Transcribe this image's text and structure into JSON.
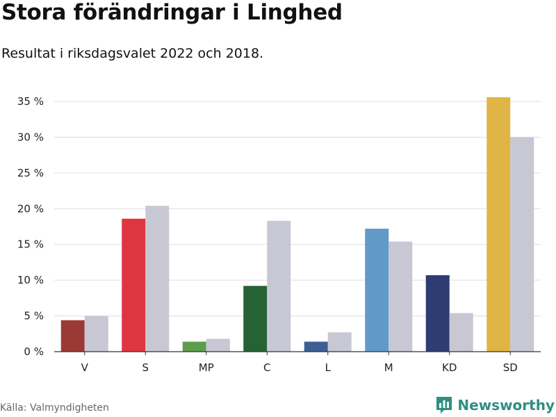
{
  "header": {
    "title": "Stora förändringar i Linghed",
    "subtitle": "Resultat i riksdagsvalet 2022 och 2018."
  },
  "footer": {
    "source": "Källa: Valmyndigheten",
    "brand": "Newsworthy"
  },
  "colors": {
    "previous_year": "#c8c8d4",
    "grid": "#dddddd",
    "axis": "#333333",
    "brand": "#2f8f80"
  },
  "chart_data": {
    "type": "bar",
    "categories": [
      "V",
      "S",
      "MP",
      "C",
      "L",
      "M",
      "KD",
      "SD"
    ],
    "series": [
      {
        "values": [
          4.4,
          18.6,
          1.4,
          9.2,
          1.4,
          17.2,
          10.7,
          35.6
        ],
        "colors": [
          "#9b3a35",
          "#dd3640",
          "#5d9e4c",
          "#276134",
          "#3d5f93",
          "#6199c8",
          "#2f3c73",
          "#dfb546"
        ]
      },
      {
        "values": [
          5.0,
          20.4,
          1.8,
          18.3,
          2.7,
          15.4,
          5.4,
          30.0
        ],
        "colors": [
          "#c8c8d4",
          "#c8c8d4",
          "#c8c8d4",
          "#c8c8d4",
          "#c8c8d4",
          "#c8c8d4",
          "#c8c8d4",
          "#c8c8d4"
        ]
      }
    ],
    "y_ticks": [
      "0 %",
      "5 %",
      "10 %",
      "15 %",
      "20 %",
      "25 %",
      "30 %",
      "35 %"
    ],
    "ylim": [
      0,
      35
    ],
    "grid": true,
    "legend": "none"
  }
}
